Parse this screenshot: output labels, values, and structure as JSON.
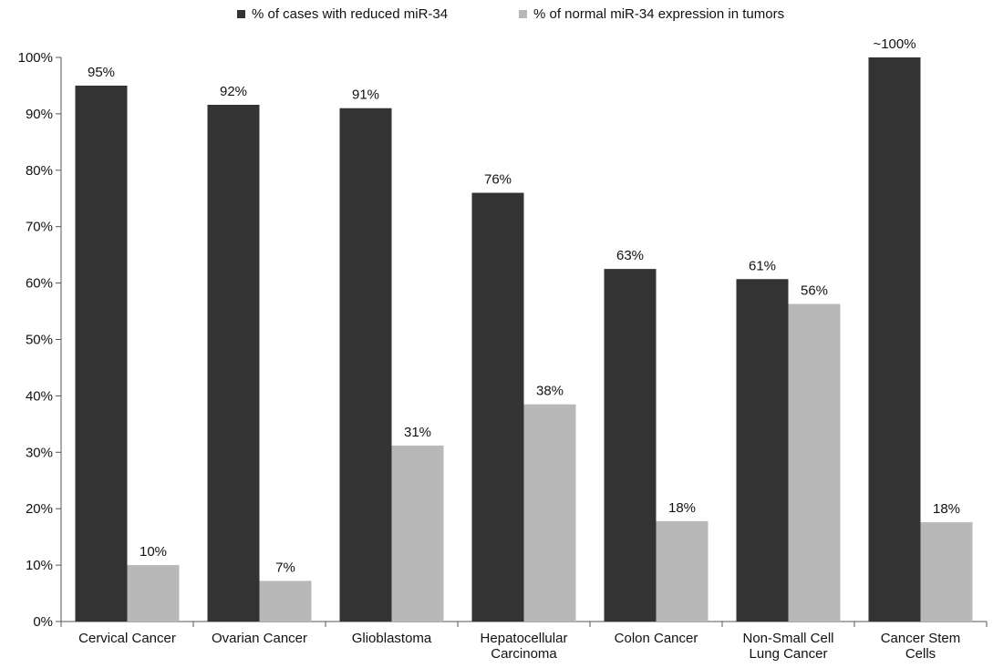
{
  "chart_data": {
    "type": "bar",
    "title": "",
    "xlabel": "",
    "ylabel": "",
    "ylim": [
      0,
      100
    ],
    "y_ticks": [
      "0%",
      "10%",
      "20%",
      "30%",
      "40%",
      "50%",
      "60%",
      "70%",
      "80%",
      "90%",
      "100%"
    ],
    "legend_position": "top",
    "grid": false,
    "categories": [
      [
        "Cervical Cancer"
      ],
      [
        "Ovarian Cancer"
      ],
      [
        "Glioblastoma"
      ],
      [
        "Hepatocellular",
        "Carcinoma"
      ],
      [
        "Colon Cancer"
      ],
      [
        "Non-Small Cell",
        "Lung Cancer"
      ],
      [
        "Cancer Stem",
        "Cells"
      ]
    ],
    "series": [
      {
        "name": "% of cases with reduced miR-34",
        "color": "#333333",
        "values": [
          95,
          91.6,
          91,
          76,
          62.5,
          60.7,
          100
        ],
        "labels": [
          "95%",
          "92%",
          "91%",
          "76%",
          "63%",
          "61%",
          "~100%"
        ]
      },
      {
        "name": "% of normal miR-34 expression in tumors",
        "color": "#b8b8b8",
        "values": [
          10,
          7.2,
          31.2,
          38.5,
          17.8,
          56.3,
          17.6
        ],
        "labels": [
          "10%",
          "7%",
          "31%",
          "38%",
          "18%",
          "56%",
          "18%"
        ]
      }
    ]
  }
}
